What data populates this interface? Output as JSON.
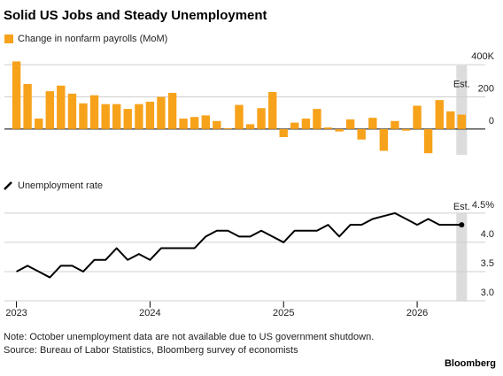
{
  "title": "Solid US Jobs and Steady Unemployment",
  "note": "Note: October unemployment data are not available due to US government shutdown.",
  "source": "Source: Bureau of Labor Statistics, Bloomberg survey of economists",
  "brand": "Bloomberg",
  "chart_data": [
    {
      "type": "bar",
      "x": [
        2023,
        2023.083,
        2023.167,
        2023.25,
        2023.333,
        2023.417,
        2023.5,
        2023.583,
        2023.667,
        2023.75,
        2023.833,
        2023.917,
        2024,
        2024.083,
        2024.167,
        2024.25,
        2024.333,
        2024.417,
        2024.5,
        2024.583,
        2024.667,
        2024.75,
        2024.833,
        2024.917,
        2025,
        2025.083,
        2025.167,
        2025.25,
        2025.333,
        2025.417,
        2025.5,
        2025.583,
        2025.667,
        2025.75,
        2025.833,
        2025.917,
        2026,
        2026.083,
        2026.167,
        2026.25,
        2026.333
      ],
      "series": [
        {
          "name": "Change in nonfarm payrolls (MoM)",
          "color": "#f7a21b",
          "values": [
            420,
            280,
            65,
            235,
            270,
            220,
            160,
            210,
            155,
            155,
            125,
            155,
            170,
            200,
            225,
            65,
            75,
            85,
            50,
            5,
            150,
            30,
            130,
            230,
            -50,
            40,
            65,
            125,
            10,
            -15,
            60,
            -65,
            70,
            -135,
            50,
            -10,
            145,
            -150,
            180,
            110,
            90
          ]
        }
      ],
      "annotation": "Est.",
      "xlim": [
        2022.91,
        2026.51
      ],
      "xticks": [
        2023,
        2024,
        2025,
        2026
      ],
      "ylim": [
        -160,
        450
      ],
      "yticks": [
        0,
        200,
        {
          "value": 400,
          "label": "400K"
        }
      ],
      "grid": true
    },
    {
      "type": "line",
      "x": [
        2023,
        2023.083,
        2023.167,
        2023.25,
        2023.333,
        2023.417,
        2023.5,
        2023.583,
        2023.667,
        2023.75,
        2023.833,
        2023.917,
        2024,
        2024.083,
        2024.167,
        2024.25,
        2024.333,
        2024.417,
        2024.5,
        2024.583,
        2024.667,
        2024.75,
        2024.833,
        2024.917,
        2025,
        2025.083,
        2025.167,
        2025.25,
        2025.333,
        2025.417,
        2025.5,
        2025.583,
        2025.667,
        2025.75,
        2025.833,
        2025.917,
        2026,
        2026.083,
        2026.167,
        2026.25,
        2026.333
      ],
      "series": [
        {
          "name": "Unemployment rate",
          "color": "#000000",
          "values": [
            3.5,
            3.6,
            3.5,
            3.4,
            3.6,
            3.6,
            3.5,
            3.7,
            3.7,
            3.9,
            3.7,
            3.8,
            3.7,
            3.9,
            3.9,
            3.9,
            3.9,
            4.1,
            4.2,
            4.2,
            4.1,
            4.1,
            4.2,
            4.1,
            4.0,
            4.2,
            4.2,
            4.2,
            4.3,
            4.1,
            4.3,
            4.3,
            4.4,
            4.45,
            4.5,
            4.4,
            4.3,
            4.4,
            4.3,
            4.3,
            4.3
          ]
        }
      ],
      "annotation": "Est.",
      "xlim": [
        2022.91,
        2026.51
      ],
      "xticks": [
        2023,
        2024,
        2025,
        2026
      ],
      "ylim": [
        2.9,
        4.65
      ],
      "yticks": [
        {
          "value": 3,
          "label": "3.0"
        },
        3.5,
        {
          "value": 4,
          "label": "4.0"
        },
        {
          "value": 4.5,
          "label": "4.5%"
        }
      ],
      "grid": true
    }
  ]
}
